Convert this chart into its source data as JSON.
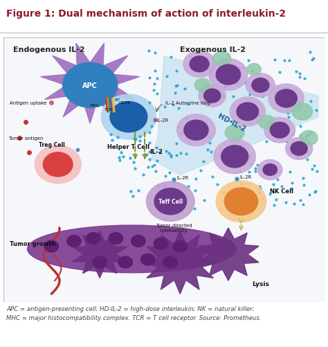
{
  "title": "Figure 1: Dual mechanism of action of interleukin-2",
  "title_color": "#8B1A2D",
  "bg_color": "#FFFFFF",
  "footnote": "APC = antigen-presenting cell; HD-IL-2 = high-dose interleukin; NK = natural killer;\nMHC = major histocompatibility complex. TCR = T cell receptor. Source: Prometheus.",
  "footnote_color": "#444444",
  "label_endogenous": "Endogenous IL-2",
  "label_exogenous": "Exogenous IL-2",
  "apc_body_color": "#2B7BB9",
  "apc_star_color": "#9B6BB5",
  "apc_label": "APC",
  "helper_outer_color": "#AED4EE",
  "helper_inner_color": "#1B5FA8",
  "helper_label": "Helper T Cell",
  "treg_outer_color": "#F5C0C0",
  "treg_inner_color": "#D94040",
  "treg_label": "Treg Cell",
  "teff_outer_color": "#C9A8D8",
  "teff_inner_color": "#6B3A8A",
  "teff_label": "Teff Cell",
  "nk_outer_color": "#F5C888",
  "nk_inner_color": "#E08030",
  "nk_label": "NK Cell",
  "tumor_color": "#6B3080",
  "tumor_label": "Tumor growth",
  "lysis_label": "Lysis",
  "tumor_directed_label": "Tumor directed\ncytotoxicity",
  "antigen_uptake_label": "Antigen uptake",
  "tumor_antigen_label": "Tumor antigen",
  "il2_autocrine_label": "IL-2 Autocrine loop",
  "il2_label": "IL-2",
  "il2r_label": "IL-2R",
  "hd_il2_label": "HD-IL-2",
  "b7_label": "B7",
  "cd28_label": "CD28",
  "mhc_label": "MHC",
  "tcr_label": "TCR",
  "il2_dot_color": "#1EA4D4",
  "hd_band_color": "#B8D9EF",
  "purple_cell_outer": "#C8A8D8",
  "purple_cell_inner": "#6B3A8A",
  "teal_cell_color": "#A8D8C0",
  "arrow_olive": "#7A9030",
  "arrow_tan": "#C8B870"
}
